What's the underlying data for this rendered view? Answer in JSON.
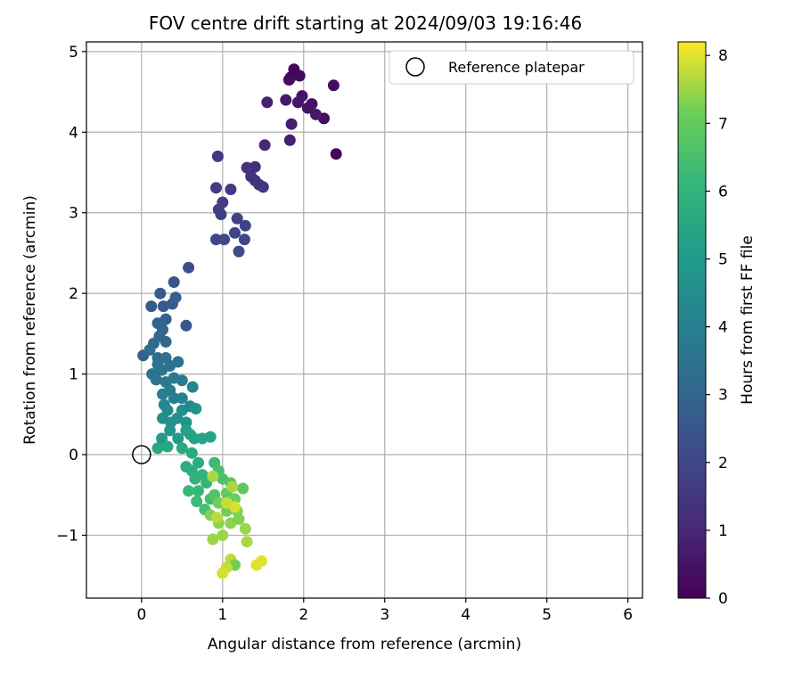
{
  "chart_data": {
    "type": "scatter",
    "title": "FOV centre drift starting at 2024/09/03 19:16:46",
    "xlabel": "Angular distance from reference (arcmin)",
    "ylabel": "Rotation from reference (arcmin)",
    "xlim": [
      -0.68,
      6.18
    ],
    "ylim": [
      -1.78,
      5.12
    ],
    "xticks": [
      0,
      1,
      2,
      3,
      4,
      5,
      6
    ],
    "yticks": [
      -1,
      0,
      1,
      2,
      3,
      4,
      5
    ],
    "xtick_labels": [
      "0",
      "1",
      "2",
      "3",
      "4",
      "5",
      "6"
    ],
    "ytick_labels": [
      "−1",
      "0",
      "1",
      "2",
      "3",
      "4",
      "5"
    ],
    "grid": true,
    "legend": {
      "position": "top-right",
      "entries": [
        "Reference platepar"
      ]
    },
    "reference_point": {
      "x": 0,
      "y": 0,
      "label": "Reference platepar"
    },
    "colorbar": {
      "label": "Hours from first FF file",
      "colormap": "viridis",
      "range": [
        0,
        8.2
      ],
      "ticks": [
        0,
        1,
        2,
        3,
        4,
        5,
        6,
        7,
        8
      ]
    },
    "points": [
      [
        1.84,
        4.68,
        0.05
      ],
      [
        1.88,
        4.78,
        0.1
      ],
      [
        1.95,
        4.7,
        0.2
      ],
      [
        1.82,
        4.65,
        0.25
      ],
      [
        2.37,
        4.58,
        0.3
      ],
      [
        2.4,
        3.73,
        0.15
      ],
      [
        2.25,
        4.17,
        0.35
      ],
      [
        2.1,
        4.35,
        0.4
      ],
      [
        2.05,
        4.3,
        0.45
      ],
      [
        1.98,
        4.45,
        0.5
      ],
      [
        1.93,
        4.37,
        0.55
      ],
      [
        1.78,
        4.4,
        0.6
      ],
      [
        2.15,
        4.22,
        0.6
      ],
      [
        1.85,
        4.1,
        0.7
      ],
      [
        1.83,
        3.9,
        0.8
      ],
      [
        1.55,
        4.37,
        0.85
      ],
      [
        1.52,
        3.84,
        1.0
      ],
      [
        1.4,
        3.57,
        1.2
      ],
      [
        1.35,
        3.45,
        1.3
      ],
      [
        1.3,
        3.56,
        1.4
      ],
      [
        1.45,
        3.35,
        1.4
      ],
      [
        1.5,
        3.32,
        1.5
      ],
      [
        1.4,
        3.4,
        1.3
      ],
      [
        0.94,
        3.7,
        1.5
      ],
      [
        1.1,
        3.29,
        1.6
      ],
      [
        0.92,
        3.31,
        1.6
      ],
      [
        1.0,
        3.13,
        1.7
      ],
      [
        0.95,
        3.04,
        1.7
      ],
      [
        0.98,
        2.98,
        1.8
      ],
      [
        1.18,
        2.93,
        1.8
      ],
      [
        1.28,
        2.84,
        1.9
      ],
      [
        1.15,
        2.75,
        1.9
      ],
      [
        1.27,
        2.67,
        2.0
      ],
      [
        0.92,
        2.67,
        2.0
      ],
      [
        1.02,
        2.67,
        2.0
      ],
      [
        1.2,
        2.52,
        2.1
      ],
      [
        0.58,
        2.32,
        2.2
      ],
      [
        0.4,
        2.14,
        2.4
      ],
      [
        0.55,
        1.6,
        2.5
      ],
      [
        0.23,
        2.0,
        2.6
      ],
      [
        0.12,
        1.84,
        2.6
      ],
      [
        0.27,
        1.84,
        2.6
      ],
      [
        0.38,
        1.87,
        2.6
      ],
      [
        0.42,
        1.95,
        2.7
      ],
      [
        0.3,
        1.68,
        2.8
      ],
      [
        0.2,
        1.63,
        2.9
      ],
      [
        0.26,
        1.55,
        3.0
      ],
      [
        0.22,
        1.47,
        3.0
      ],
      [
        0.3,
        1.4,
        3.1
      ],
      [
        0.02,
        1.23,
        2.8
      ],
      [
        0.15,
        1.38,
        3.2
      ],
      [
        0.1,
        1.3,
        3.3
      ],
      [
        0.2,
        1.2,
        3.3
      ],
      [
        0.3,
        1.2,
        3.4
      ],
      [
        0.35,
        1.1,
        3.4
      ],
      [
        0.45,
        1.15,
        3.5
      ],
      [
        0.25,
        1.05,
        3.5
      ],
      [
        0.13,
        1.0,
        3.6
      ],
      [
        0.18,
        0.93,
        3.6
      ],
      [
        0.3,
        0.9,
        3.7
      ],
      [
        0.4,
        0.95,
        3.8
      ],
      [
        0.5,
        0.92,
        3.8
      ],
      [
        0.35,
        0.8,
        3.9
      ],
      [
        0.26,
        0.75,
        3.9
      ],
      [
        0.4,
        0.7,
        4.0
      ],
      [
        0.5,
        0.7,
        4.1
      ],
      [
        0.63,
        0.84,
        4.2
      ],
      [
        0.2,
        1.12,
        3.5
      ],
      [
        0.28,
        0.62,
        4.3
      ],
      [
        0.32,
        0.55,
        4.4
      ],
      [
        0.5,
        0.55,
        4.5
      ],
      [
        0.6,
        0.6,
        4.3
      ],
      [
        0.44,
        0.45,
        4.6
      ],
      [
        0.36,
        0.4,
        4.7
      ],
      [
        0.26,
        0.45,
        4.6
      ],
      [
        0.55,
        0.4,
        4.8
      ],
      [
        0.67,
        0.57,
        4.8
      ],
      [
        0.35,
        0.3,
        4.9
      ],
      [
        0.25,
        0.2,
        5.0
      ],
      [
        0.45,
        0.2,
        5.0
      ],
      [
        0.55,
        0.3,
        5.2
      ],
      [
        0.6,
        0.25,
        5.3
      ],
      [
        0.65,
        0.2,
        5.3
      ],
      [
        0.75,
        0.2,
        5.4
      ],
      [
        0.85,
        0.22,
        5.4
      ],
      [
        0.2,
        0.08,
        5.5
      ],
      [
        0.32,
        0.1,
        5.5
      ],
      [
        0.5,
        0.08,
        5.6
      ],
      [
        0.62,
        0.02,
        5.6
      ],
      [
        0.7,
        -0.1,
        5.7
      ],
      [
        0.55,
        -0.15,
        5.8
      ],
      [
        0.62,
        -0.2,
        5.8
      ],
      [
        0.66,
        -0.3,
        5.9
      ],
      [
        0.75,
        -0.25,
        6.0
      ],
      [
        0.8,
        -0.35,
        6.1
      ],
      [
        0.7,
        -0.45,
        6.2
      ],
      [
        0.58,
        -0.45,
        6.2
      ],
      [
        0.68,
        -0.58,
        6.3
      ],
      [
        0.85,
        -0.55,
        6.4
      ],
      [
        0.78,
        -0.68,
        6.5
      ],
      [
        0.9,
        -0.1,
        6.3
      ],
      [
        0.95,
        -0.2,
        6.5
      ],
      [
        1.0,
        -0.3,
        6.6
      ],
      [
        0.9,
        -0.5,
        6.7
      ],
      [
        1.1,
        -0.35,
        6.8
      ],
      [
        1.25,
        -0.42,
        6.9
      ],
      [
        1.05,
        -0.48,
        7.0
      ],
      [
        1.15,
        -0.55,
        7.1
      ],
      [
        0.95,
        -0.6,
        7.2
      ],
      [
        1.05,
        -0.7,
        7.2
      ],
      [
        1.18,
        -0.7,
        7.3
      ],
      [
        0.85,
        -0.75,
        7.3
      ],
      [
        0.95,
        -0.85,
        7.4
      ],
      [
        1.1,
        -0.85,
        7.4
      ],
      [
        1.28,
        -0.92,
        7.5
      ],
      [
        0.88,
        -1.05,
        7.5
      ],
      [
        1.0,
        -1.0,
        7.5
      ],
      [
        1.2,
        -0.8,
        7.3
      ],
      [
        1.12,
        -0.4,
        7.6
      ],
      [
        1.3,
        -1.08,
        7.6
      ],
      [
        0.88,
        -0.27,
        7.6
      ],
      [
        1.1,
        -1.3,
        7.7
      ],
      [
        1.15,
        -1.37,
        7.2
      ],
      [
        1.05,
        -1.4,
        7.8
      ],
      [
        1.0,
        -1.47,
        7.9
      ],
      [
        1.42,
        -1.37,
        8.0
      ],
      [
        1.48,
        -1.32,
        8.0
      ],
      [
        0.93,
        -0.78,
        7.7
      ],
      [
        1.05,
        -0.6,
        7.8
      ],
      [
        1.15,
        -0.65,
        7.9
      ]
    ]
  }
}
